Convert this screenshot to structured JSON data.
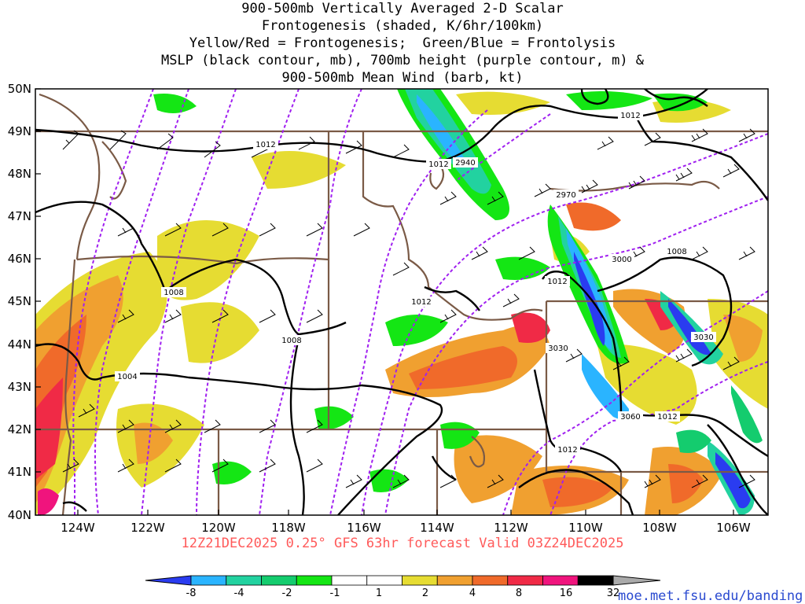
{
  "title_lines": [
    "900-500mb Vertically Averaged 2-D Scalar",
    "Frontogenesis (shaded, K/6hr/100km)",
    "Yellow/Red = Frontogenesis;  Green/Blue = Frontolysis",
    "MSLP (black contour, mb), 700mb height (purple contour, m) &",
    "900-500mb Mean Wind (barb, kt)"
  ],
  "subtitle": "12Z21DEC2025 0.25° GFS 63hr forecast Valid 03Z24DEC2025",
  "credit": "moe.met.fsu.edu/banding",
  "lat_labels": [
    "50N",
    "49N",
    "48N",
    "47N",
    "46N",
    "45N",
    "44N",
    "43N",
    "42N",
    "41N",
    "40N"
  ],
  "lon_labels": [
    "124W",
    "122W",
    "120W",
    "118W",
    "116W",
    "114W",
    "112W",
    "110W",
    "108W",
    "106W"
  ],
  "mslp_labels": [
    "1012",
    "1012",
    "1012",
    "1012",
    "1012",
    "1012",
    "1012",
    "1008",
    "1008",
    "1008",
    "1004"
  ],
  "height_labels": [
    "2940",
    "2970",
    "3000",
    "3030",
    "3030",
    "3060"
  ],
  "colorbar": {
    "colors": [
      "#2a3cf0",
      "#2ab4ff",
      "#22d2a0",
      "#14cc6e",
      "#14e614",
      "#ffffff",
      "#ffffff",
      "#e6dc32",
      "#f0a030",
      "#f06a2a",
      "#f02a46",
      "#f0147d",
      "#000000",
      "#aaaaaa"
    ],
    "labels": [
      "-8",
      "-4",
      "-2",
      "-1",
      "1",
      "2",
      "4",
      "8",
      "16",
      "32"
    ]
  },
  "colors": {
    "mslp": "#000000",
    "height": "#a020f0",
    "borders": "#7a5a46",
    "frontolysis": "#14e614",
    "frontogenesis": "#e6dc32"
  }
}
